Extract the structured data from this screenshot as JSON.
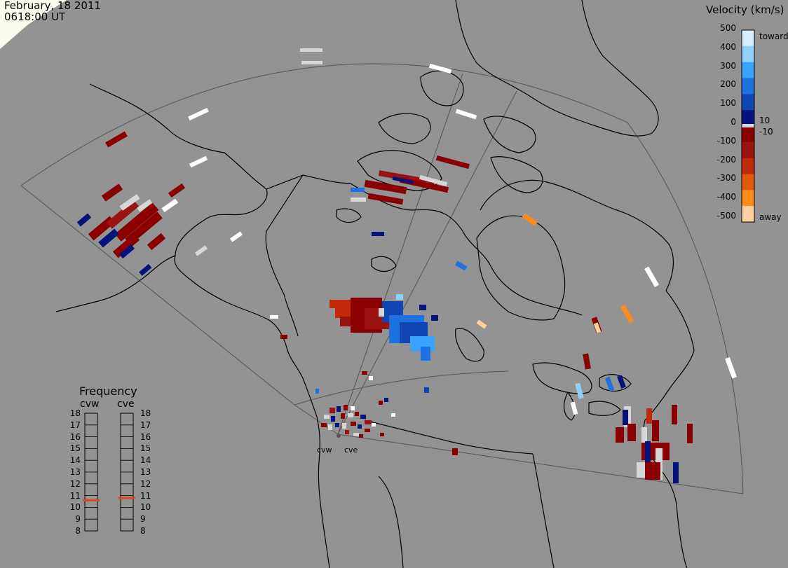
{
  "header": {
    "date": "February, 18 2011",
    "time": "0618:00 UT"
  },
  "velocity_scale": {
    "title": "Velocity (km/s)",
    "ticks": [
      "500",
      "400",
      "300",
      "200",
      "100",
      "0",
      "-100",
      "-200",
      "-300",
      "-400",
      "-500"
    ],
    "inner_labels": [
      "10",
      "-10"
    ],
    "toward_label": "toward",
    "away_label": "away",
    "colors": [
      "#d6ecff",
      "#8fd0ff",
      "#3aa2ff",
      "#1e72e0",
      "#0f46b4",
      "#06137c",
      "#8a0000",
      "#9a1212",
      "#c22a0c",
      "#e55a0a",
      "#ff8c1a",
      "#ffd0a0"
    ]
  },
  "frequency_panel": {
    "title": "Frequency",
    "radar_left": "cvw",
    "radar_right": "cve",
    "levels": [
      "18",
      "17",
      "16",
      "15",
      "14",
      "13",
      "12",
      "11",
      "10",
      "9",
      "8"
    ],
    "cvw_frequency_mhz": 10.6,
    "cve_frequency_mhz": 10.8,
    "marker_color": "#e2461e"
  },
  "radar_sites": {
    "cvw": "cvw",
    "cve": "cve"
  },
  "colors": {
    "background": "#939393",
    "coastline": "#000000",
    "fov_outline": "#555555",
    "ground_scatter": "#d6d6d6"
  }
}
